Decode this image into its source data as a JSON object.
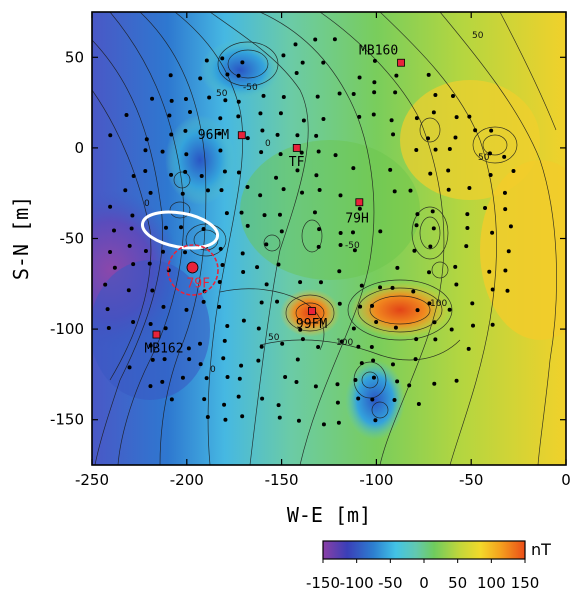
{
  "map": {
    "xlabel": "W-E [m]",
    "ylabel": "S-N [m]",
    "xlim": [
      -250,
      0
    ],
    "ylim": [
      -175,
      75
    ],
    "x_ticks": [
      "-250",
      "-200",
      "-150",
      "-100",
      "-50",
      "0"
    ],
    "y_ticks": [
      "50",
      "0",
      "-50",
      "-100",
      "-150"
    ],
    "colorbar": {
      "unit": "nT",
      "range": [
        -150,
        150
      ],
      "tick_labels": [
        "-150",
        "-100",
        "-50",
        "0",
        "50",
        "100",
        "150"
      ],
      "colors": [
        "#8b3fa6",
        "#3a3fb8",
        "#2d7fd0",
        "#42c3e6",
        "#62c8b0",
        "#6fcc5e",
        "#c4d63a",
        "#f2d82a",
        "#f5a01e",
        "#ec4d18"
      ]
    },
    "sites": [
      {
        "label": "MB160",
        "x": -87,
        "y": 47,
        "type": "square"
      },
      {
        "label": "96FM",
        "x": -171,
        "y": 7,
        "type": "square"
      },
      {
        "label": "TF",
        "x": -142,
        "y": 0,
        "type": "square"
      },
      {
        "label": "79H",
        "x": -109,
        "y": -30,
        "type": "square"
      },
      {
        "label": "79F",
        "x": -197,
        "y": -66,
        "type": "circle"
      },
      {
        "label": "99FM",
        "x": -134,
        "y": -90,
        "type": "square"
      },
      {
        "label": "MB162",
        "x": -216,
        "y": -103,
        "type": "square"
      }
    ],
    "contour_labels": [
      "50",
      "-50",
      "0",
      "50",
      "0",
      "-50",
      "50",
      "100",
      "100",
      "50",
      "0"
    ],
    "marker_colors": {
      "site": "#e8233b",
      "circle_outline": "#e8233b",
      "ellipse": "#ffffff"
    }
  }
}
